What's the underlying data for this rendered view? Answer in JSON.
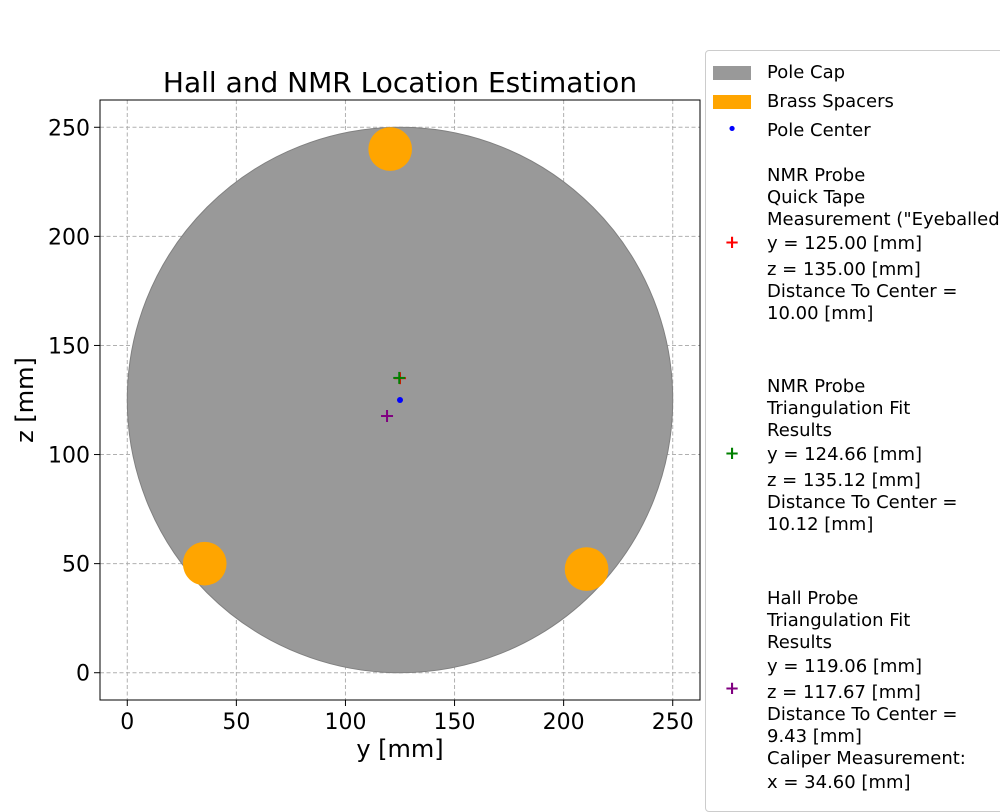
{
  "chart_data": {
    "type": "scatter",
    "title": "Hall and NMR Location Estimation",
    "xlabel": "y [mm]",
    "ylabel": "z [mm]",
    "xlim": [
      -12.5,
      262.5
    ],
    "ylim": [
      -12.5,
      262.5
    ],
    "xticks": [
      0,
      50,
      100,
      150,
      200,
      250
    ],
    "yticks": [
      0,
      50,
      100,
      150,
      200,
      250
    ],
    "grid": true,
    "legend_position": "outside-right",
    "pole_cap": {
      "label": "Pole Cap",
      "center": [
        125,
        125
      ],
      "radius": 125,
      "color": "#999999"
    },
    "brass_spacers": {
      "label": "Brass Spacers",
      "color": "#ffa500",
      "radius": 10,
      "points": [
        [
          120.5,
          240
        ],
        [
          35.5,
          50
        ],
        [
          210.5,
          47.5
        ]
      ]
    },
    "pole_center": {
      "label": "Pole Center",
      "point": [
        125,
        125
      ],
      "color": "#0000ff"
    },
    "series": [
      {
        "name_lines": [
          "NMR Probe",
          "Quick Tape",
          "Measurement (\"Eyeballed\")",
          "y = 125.00 [mm]",
          "z = 135.00 [mm]",
          "Distance To Center =",
          "10.00 [mm]"
        ],
        "point": [
          125.0,
          135.0
        ],
        "color": "#ff0000",
        "marker": "plus"
      },
      {
        "name_lines": [
          "NMR Probe",
          "Triangulation Fit",
          "Results",
          "y = 124.66 [mm]",
          "z = 135.12 [mm]",
          "Distance To Center =",
          "10.12 [mm]"
        ],
        "point": [
          124.66,
          135.12
        ],
        "color": "#008000",
        "marker": "plus"
      },
      {
        "name_lines": [
          "Hall Probe",
          "Triangulation Fit",
          "Results",
          "y = 119.06 [mm]",
          "z = 117.67 [mm]",
          "Distance To Center =",
          "9.43 [mm]",
          "Caliper Measurement:",
          "x = 34.60 [mm]"
        ],
        "point": [
          119.06,
          117.67
        ],
        "color": "#800080",
        "marker": "plus"
      }
    ]
  },
  "legend": {
    "pole_cap": "Pole Cap",
    "brass_spacers": "Brass Spacers",
    "pole_center": "Pole Center",
    "nmr_quick": [
      "NMR Probe",
      "Quick Tape",
      "Measurement (\"Eyeballed\")",
      "y = 125.00 [mm]",
      "z = 135.00 [mm]",
      "Distance To Center =",
      "10.00 [mm]"
    ],
    "nmr_fit": [
      "NMR Probe",
      "Triangulation Fit",
      "Results",
      "y = 124.66 [mm]",
      "z = 135.12 [mm]",
      "Distance To Center =",
      "10.12 [mm]"
    ],
    "hall_fit": [
      "Hall Probe",
      "Triangulation Fit",
      "Results",
      "y = 119.06 [mm]",
      "z = 117.67 [mm]",
      "Distance To Center =",
      "9.43 [mm]",
      "Caliper Measurement:",
      "x = 34.60 [mm]"
    ]
  }
}
